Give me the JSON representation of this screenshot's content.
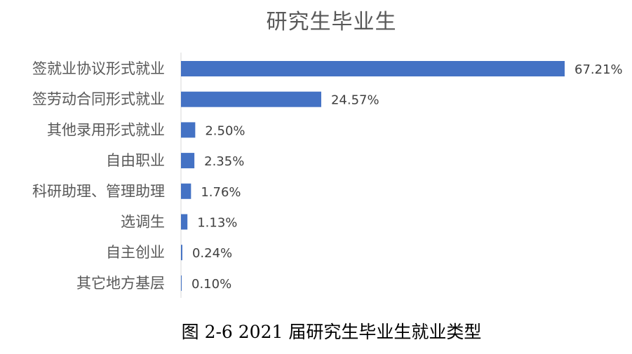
{
  "chart_data": {
    "type": "bar",
    "orientation": "horizontal",
    "title": "研究生毕业生",
    "categories": [
      "签就业协议形式就业",
      "签劳动合同形式就业",
      "其他录用形式就业",
      "自由职业",
      "科研助理、管理助理",
      "选调生",
      "自主创业",
      "其它地方基层"
    ],
    "values": [
      67.21,
      24.57,
      2.5,
      2.35,
      1.76,
      1.13,
      0.24,
      0.1
    ],
    "data_labels": [
      "67.21%",
      "24.57%",
      "2.50%",
      "2.35%",
      "1.76%",
      "1.13%",
      "0.24%",
      "0.10%"
    ],
    "unit": "%",
    "xlim": [
      0,
      67.21
    ],
    "grid": false,
    "legend": "none",
    "bar_color": "#4472C4"
  },
  "caption": "图 2-6 2021 届研究生毕业生就业类型"
}
